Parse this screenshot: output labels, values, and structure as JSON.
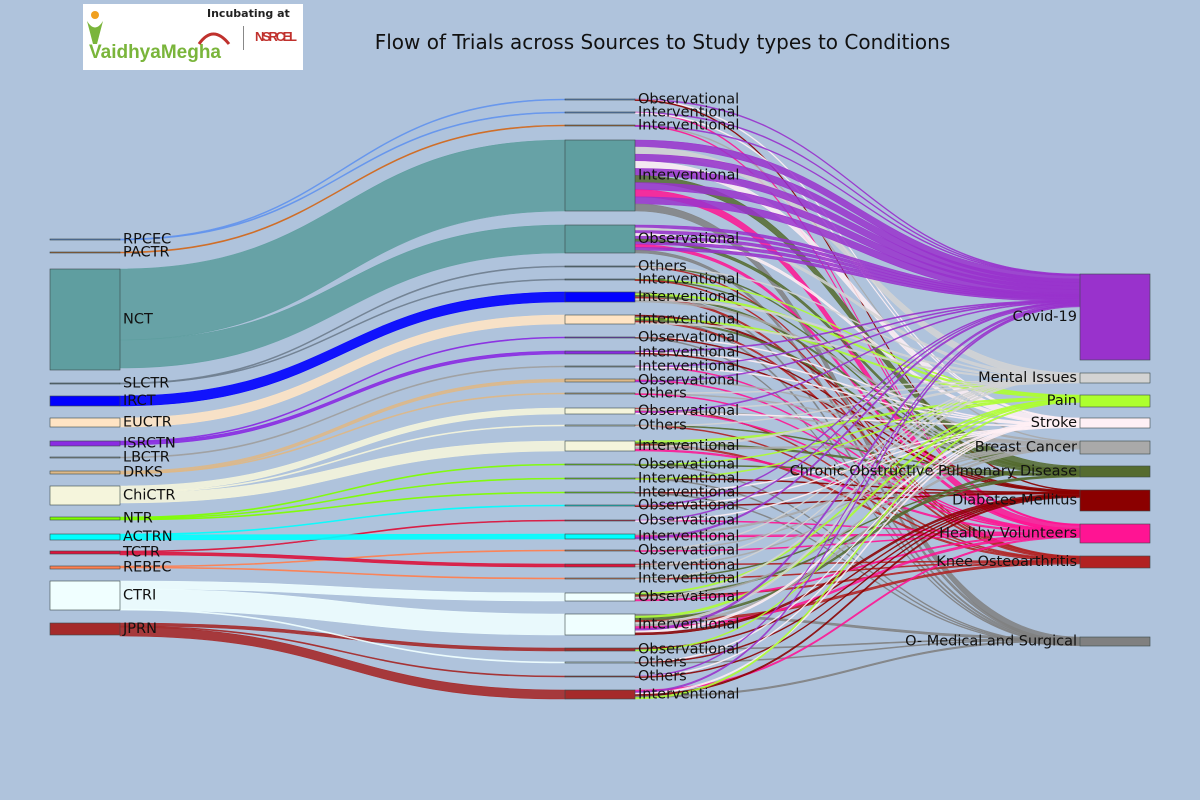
{
  "title": "Flow of Trials across Sources to Study types to Conditions",
  "logo": {
    "brand": "VaidhyaMegha",
    "tagline": "Incubating at",
    "partner": "NSRCEL",
    "colors": {
      "green": "#7ab53b",
      "orange": "#f0a020",
      "red": "#c0312d"
    }
  },
  "sources": [
    {
      "name": "RPCEC",
      "color": "#6495ed"
    },
    {
      "name": "PACTR",
      "color": "#d2691e"
    },
    {
      "name": "NCT",
      "color": "#5f9ea0"
    },
    {
      "name": "SLCTR",
      "color": "#708090"
    },
    {
      "name": "IRCT",
      "color": "#0000ff"
    },
    {
      "name": "EUCTR",
      "color": "#ffe4c4"
    },
    {
      "name": "ISRCTN",
      "color": "#8a2be2"
    },
    {
      "name": "LBCTR",
      "color": "#a0a0a0"
    },
    {
      "name": "DRKS",
      "color": "#deb887"
    },
    {
      "name": "ChiCTR",
      "color": "#f5f5dc"
    },
    {
      "name": "NTR",
      "color": "#7fff00"
    },
    {
      "name": "ACTRN",
      "color": "#00ffff"
    },
    {
      "name": "TCTR",
      "color": "#dc143c"
    },
    {
      "name": "REBEC",
      "color": "#ff7f50"
    },
    {
      "name": "CTRI",
      "color": "#f0ffff"
    },
    {
      "name": "JPRN",
      "color": "#a52a2a"
    }
  ],
  "study_types": [
    {
      "label": "Observational",
      "source": "RPCEC"
    },
    {
      "label": "Interventional",
      "source": "RPCEC"
    },
    {
      "label": "Interventional",
      "source": "PACTR"
    },
    {
      "label": "Interventional",
      "source": "NCT"
    },
    {
      "label": "Observational",
      "source": "NCT"
    },
    {
      "label": "Others",
      "source": "SLCTR"
    },
    {
      "label": "Interventional",
      "source": "SLCTR"
    },
    {
      "label": "Interventional",
      "source": "IRCT"
    },
    {
      "label": "Interventional",
      "source": "EUCTR"
    },
    {
      "label": "Observational",
      "source": "ISRCTN"
    },
    {
      "label": "Interventional",
      "source": "ISRCTN"
    },
    {
      "label": "Interventional",
      "source": "LBCTR"
    },
    {
      "label": "Observational",
      "source": "DRKS"
    },
    {
      "label": "Others",
      "source": "DRKS"
    },
    {
      "label": "Observational",
      "source": "ChiCTR"
    },
    {
      "label": "Others",
      "source": "ChiCTR"
    },
    {
      "label": "Interventional",
      "source": "ChiCTR"
    },
    {
      "label": "Observational",
      "source": "NTR"
    },
    {
      "label": "Interventional",
      "source": "NTR"
    },
    {
      "label": "Interventional",
      "source": "NTR"
    },
    {
      "label": "Observational",
      "source": "ACTRN"
    },
    {
      "label": "Observational",
      "source": "TCTR"
    },
    {
      "label": "Interventional",
      "source": "ACTRN"
    },
    {
      "label": "Observational",
      "source": "REBEC"
    },
    {
      "label": "Interventional",
      "source": "TCTR"
    },
    {
      "label": "Interventional",
      "source": "REBEC"
    },
    {
      "label": "Observational",
      "source": "CTRI"
    },
    {
      "label": "Interventional",
      "source": "CTRI"
    },
    {
      "label": "Observational",
      "source": "JPRN"
    },
    {
      "label": "Others",
      "source": "CTRI"
    },
    {
      "label": "Others",
      "source": "JPRN"
    },
    {
      "label": "Interventional",
      "source": "JPRN"
    }
  ],
  "conditions": [
    {
      "name": "Covid-19",
      "color": "#9932cc"
    },
    {
      "name": "Mental Issues",
      "color": "#d3d3d3"
    },
    {
      "name": "Pain",
      "color": "#adff2f"
    },
    {
      "name": "Stroke",
      "color": "#fff0f5"
    },
    {
      "name": "Breast Cancer",
      "color": "#a9a9a9"
    },
    {
      "name": "Chronic Obstructive Pulmonary Disease",
      "color": "#556b2f"
    },
    {
      "name": "Diabetes Mellitus",
      "color": "#8b0000"
    },
    {
      "name": "Healthy Volunteers",
      "color": "#ff1493"
    },
    {
      "name": "Knee Osteoarthritis",
      "color": "#b22222"
    },
    {
      "name": "O- Medical and Surgical",
      "color": "#808080"
    }
  ]
}
